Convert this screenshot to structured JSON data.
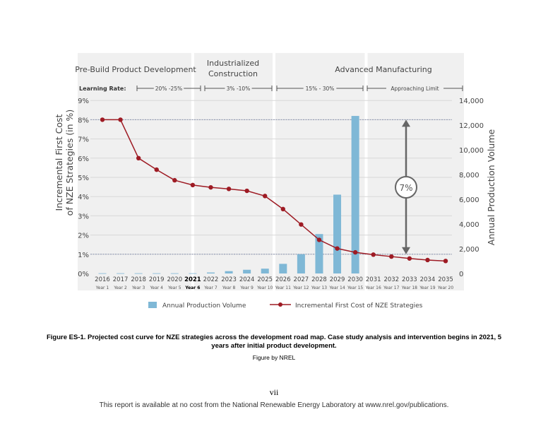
{
  "chart_data": {
    "type": "bar+line",
    "phases": [
      {
        "label": "Pre-Build Product Development",
        "learning_rate": "20% -25%"
      },
      {
        "label": "Industrialized Construction",
        "learning_rate": "3% -10%"
      },
      {
        "label": "Advanced Manufacturing",
        "learning_rate": "15% - 30%"
      },
      {
        "label": "",
        "learning_rate": "Approaching Limit"
      }
    ],
    "learning_rate_label": "Learning Rate:",
    "categories": [
      "2016",
      "2017",
      "2018",
      "2019",
      "2020",
      "2021",
      "2022",
      "2023",
      "2024",
      "2025",
      "2026",
      "2027",
      "2028",
      "2029",
      "2030",
      "2031",
      "2032",
      "2033",
      "2034",
      "2035"
    ],
    "sub_categories": [
      "Year 1",
      "Year 2",
      "Year 3",
      "Year 4",
      "Year 5",
      "Year 6",
      "Year 7",
      "Year 8",
      "Year 9",
      "Year 10",
      "Year 11",
      "Year 12",
      "Year 13",
      "Year 14",
      "Year 15",
      "Year 16",
      "Year 17",
      "Year 18",
      "Year 19",
      "Year 20"
    ],
    "highlight_category": "2021",
    "series": [
      {
        "name": "Annual Production Volume",
        "type": "bar",
        "axis": "right",
        "color": "#7fb8d6",
        "values": [
          20,
          20,
          20,
          20,
          20,
          20,
          80,
          190,
          300,
          390,
          780,
          1560,
          3190,
          6380,
          12750,
          0,
          0,
          0,
          0,
          0
        ]
      },
      {
        "name": "Incremental First Cost of NZE Strategies",
        "type": "line",
        "axis": "left",
        "color": "#9e1b24",
        "values": [
          8.0,
          8.0,
          6.0,
          5.4,
          4.85,
          4.6,
          4.48,
          4.4,
          4.3,
          4.03,
          3.35,
          2.55,
          1.75,
          1.3,
          1.1,
          0.98,
          0.88,
          0.78,
          0.7,
          0.65
        ]
      }
    ],
    "ylabel_left": [
      "Incremental First Cost",
      "of NZE Strategies (in %)"
    ],
    "ylabel_right": "Annual Production Volume",
    "yticks_left": [
      "0%",
      "1%",
      "2%",
      "3%",
      "4%",
      "5%",
      "6%",
      "7%",
      "8%",
      "9%"
    ],
    "ylim_left": [
      0,
      9
    ],
    "yticks_right": [
      "0",
      "2,000",
      "4,000",
      "6,000",
      "8,000",
      "10,000",
      "12,000",
      "14,000"
    ],
    "ylim_right": [
      0,
      14000
    ],
    "reference_lines_pct": [
      8,
      1
    ],
    "annotation": "7%",
    "grid": true,
    "legend_position": "bottom"
  },
  "caption": "Figure ES-1. Projected cost curve for NZE strategies across the development road map. Case study analysis and intervention begins in 2021, 5 years after initial product development.",
  "credit": "Figure by NREL",
  "page_number": "vii",
  "footer": "This report is available at no cost from the National Renewable Energy Laboratory at www.nrel.gov/publications."
}
